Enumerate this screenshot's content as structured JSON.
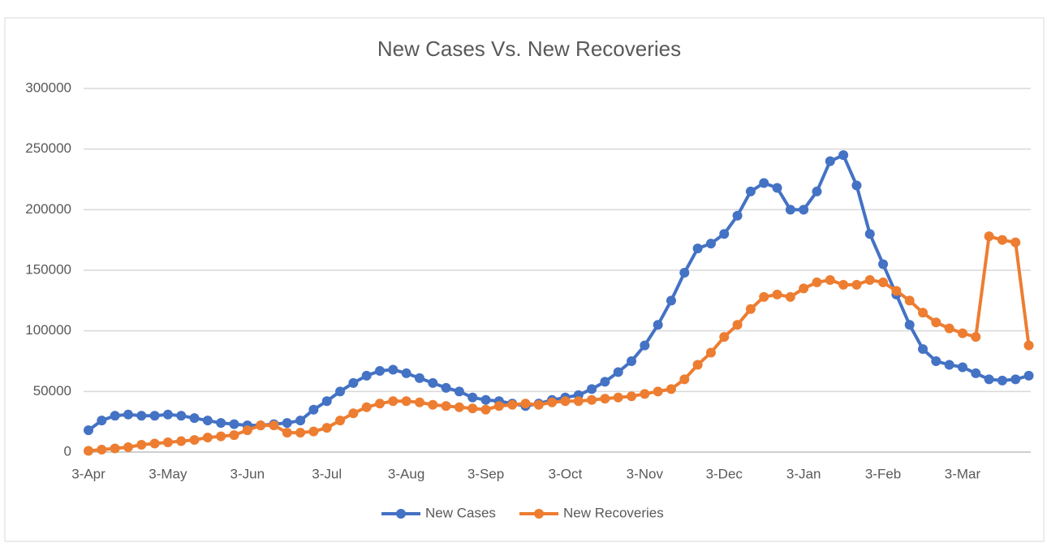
{
  "chart_data": {
    "type": "line",
    "title": "New Cases Vs. New Recoveries",
    "categories": [
      "3-Apr",
      null,
      null,
      null,
      null,
      null,
      "3-May",
      null,
      null,
      null,
      null,
      null,
      "3-Jun",
      null,
      null,
      null,
      null,
      null,
      "3-Jul",
      null,
      null,
      null,
      null,
      null,
      "3-Aug",
      null,
      null,
      null,
      null,
      null,
      "3-Sep",
      null,
      null,
      null,
      null,
      null,
      "3-Oct",
      null,
      null,
      null,
      null,
      null,
      "3-Nov",
      null,
      null,
      null,
      null,
      null,
      "3-Dec",
      null,
      null,
      null,
      null,
      null,
      "3-Jan",
      null,
      null,
      null,
      null,
      null,
      "3-Feb",
      null,
      null,
      null,
      null,
      null,
      "3-Mar",
      null,
      null,
      null,
      null,
      null
    ],
    "series": [
      {
        "name": "New Cases",
        "color": "#4472c4",
        "values": [
          18000,
          26000,
          30000,
          31000,
          30000,
          30000,
          31000,
          30000,
          28000,
          26000,
          24000,
          23000,
          22000,
          22000,
          23000,
          24000,
          26000,
          35000,
          42000,
          50000,
          57000,
          63000,
          67000,
          68000,
          65000,
          61000,
          57000,
          53000,
          50000,
          45000,
          43000,
          42000,
          40000,
          38000,
          40000,
          43000,
          45000,
          47000,
          52000,
          58000,
          66000,
          75000,
          88000,
          105000,
          125000,
          148000,
          168000,
          172000,
          180000,
          195000,
          215000,
          222000,
          218000,
          200000,
          200000,
          215000,
          240000,
          245000,
          220000,
          180000,
          155000,
          130000,
          105000,
          85000,
          75000,
          72000,
          70000,
          65000,
          60000,
          59000,
          60000,
          63000
        ]
      },
      {
        "name": "New Recoveries",
        "color": "#ed7d31",
        "values": [
          1000,
          2000,
          3000,
          4000,
          6000,
          7000,
          8000,
          9000,
          10000,
          12000,
          13000,
          14000,
          18000,
          22000,
          22000,
          16000,
          16000,
          17000,
          20000,
          26000,
          32000,
          37000,
          40000,
          42000,
          42000,
          41000,
          39000,
          38000,
          37000,
          36000,
          35000,
          38000,
          39000,
          40000,
          39000,
          41000,
          42000,
          42000,
          43000,
          44000,
          45000,
          46000,
          48000,
          50000,
          52000,
          60000,
          72000,
          82000,
          95000,
          105000,
          118000,
          128000,
          130000,
          128000,
          135000,
          140000,
          142000,
          138000,
          138000,
          142000,
          140000,
          133000,
          125000,
          115000,
          107000,
          102000,
          98000,
          95000,
          178000,
          175000,
          173000,
          88000
        ]
      }
    ],
    "ylim": [
      0,
      300000
    ],
    "yticks": [
      0,
      50000,
      100000,
      150000,
      200000,
      250000,
      300000
    ],
    "grid": true,
    "legend": "bottom"
  }
}
